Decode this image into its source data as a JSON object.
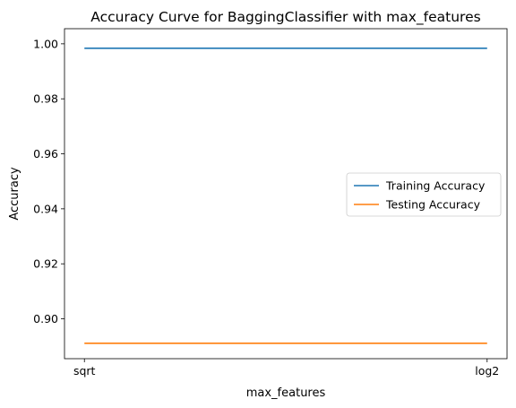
{
  "chart_data": {
    "type": "line",
    "title": "Accuracy Curve for BaggingClassifier with max_features",
    "xlabel": "max_features",
    "ylabel": "Accuracy",
    "categories": [
      "sqrt",
      "log2"
    ],
    "ylim": [
      0.8855,
      1.0055
    ],
    "yticks": [
      "0.90",
      "0.92",
      "0.94",
      "0.96",
      "0.98",
      "1.00"
    ],
    "series": [
      {
        "name": "Training Accuracy",
        "values": [
          0.9984,
          0.9984
        ],
        "color": "#1f77b4"
      },
      {
        "name": "Testing Accuracy",
        "values": [
          0.8911,
          0.8911
        ],
        "color": "#ff7f0e"
      }
    ],
    "legend_position": "center-right",
    "grid": false
  }
}
